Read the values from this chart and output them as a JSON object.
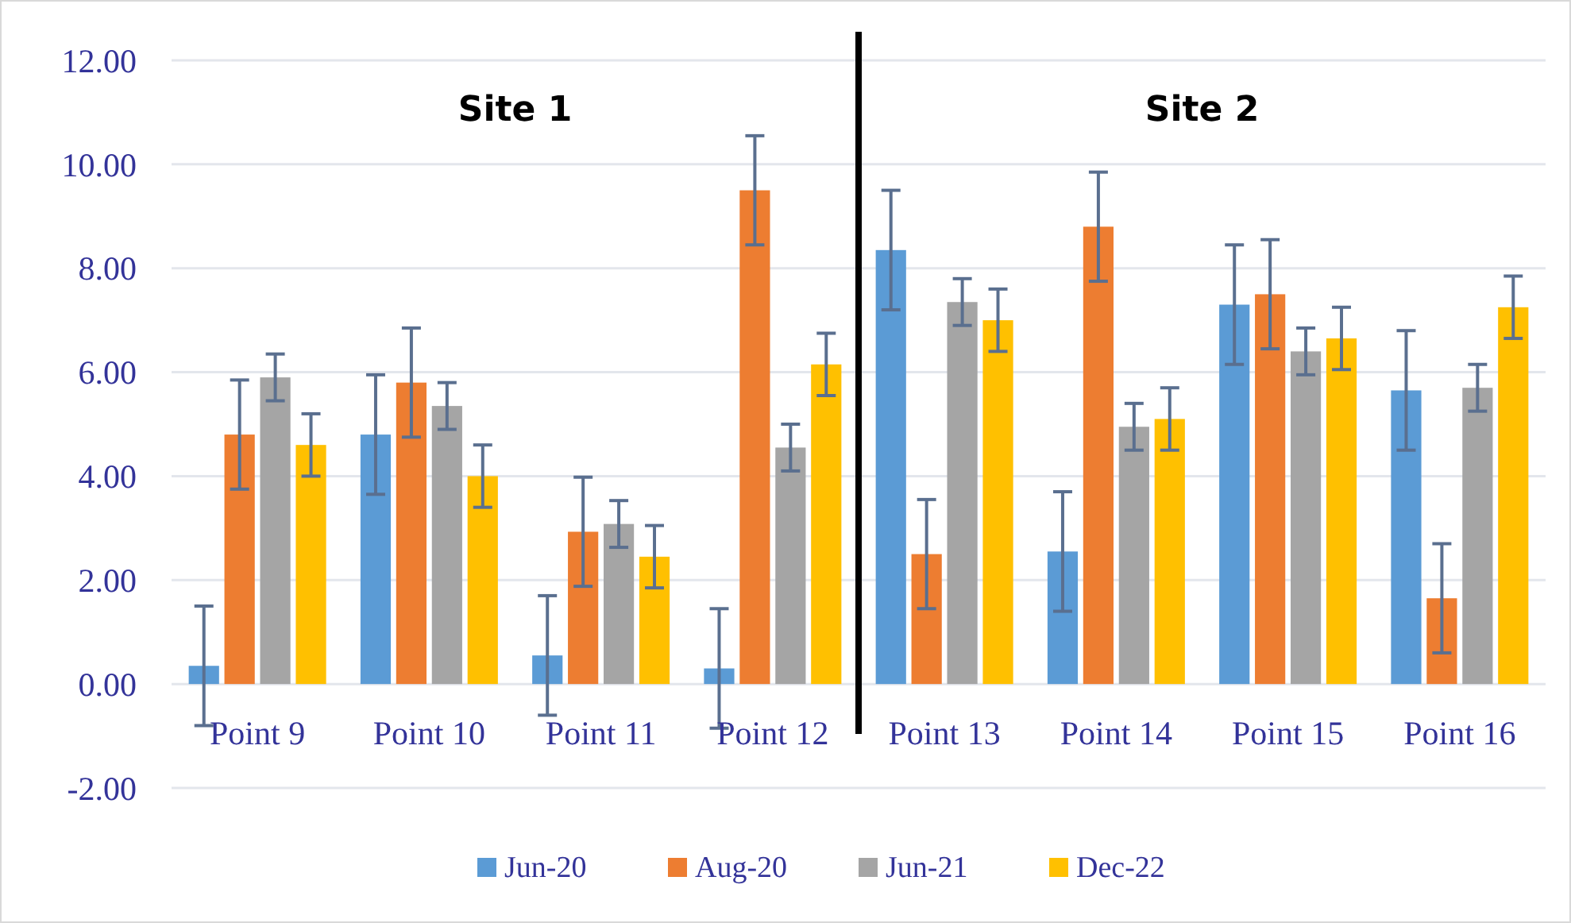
{
  "chart_data": {
    "type": "bar",
    "categories": [
      "Point 9",
      "Point 10",
      "Point 11",
      "Point 12",
      "Point 13",
      "Point 14",
      "Point 15",
      "Point 16"
    ],
    "series": [
      {
        "name": "Jun-20",
        "color": "#5b9bd5",
        "values": [
          0.35,
          4.8,
          0.55,
          0.3,
          8.35,
          2.55,
          7.3,
          5.65
        ],
        "errors": [
          1.15,
          1.15,
          1.15,
          1.15,
          1.15,
          1.15,
          1.15,
          1.15
        ]
      },
      {
        "name": "Aug-20",
        "color": "#ed7d31",
        "values": [
          4.8,
          5.8,
          2.93,
          9.5,
          2.5,
          8.8,
          7.5,
          1.65
        ],
        "errors": [
          1.05,
          1.05,
          1.05,
          1.05,
          1.05,
          1.05,
          1.05,
          1.05
        ]
      },
      {
        "name": "Jun-21",
        "color": "#a5a5a5",
        "values": [
          5.9,
          5.35,
          3.08,
          4.55,
          7.35,
          4.95,
          6.4,
          5.7
        ],
        "errors": [
          0.45,
          0.45,
          0.45,
          0.45,
          0.45,
          0.45,
          0.45,
          0.45
        ]
      },
      {
        "name": "Dec-22",
        "color": "#ffc000",
        "values": [
          4.6,
          4.0,
          2.45,
          6.15,
          7.0,
          5.1,
          6.65,
          7.25
        ],
        "errors": [
          0.6,
          0.6,
          0.6,
          0.6,
          0.6,
          0.6,
          0.6,
          0.6
        ]
      }
    ],
    "ylim": [
      -2,
      12
    ],
    "yticks": [
      {
        "value": -2,
        "label": "-2.00"
      },
      {
        "value": 0,
        "label": "0.00"
      },
      {
        "value": 2,
        "label": "2.00"
      },
      {
        "value": 4,
        "label": "4.00"
      },
      {
        "value": 6,
        "label": "6.00"
      },
      {
        "value": 8,
        "label": "8.00"
      },
      {
        "value": 10,
        "label": "10.00"
      },
      {
        "value": 12,
        "label": "12.00"
      }
    ],
    "grid": "y",
    "legend": "bottom",
    "annotations": [
      "Site 1",
      "Site 2"
    ]
  }
}
